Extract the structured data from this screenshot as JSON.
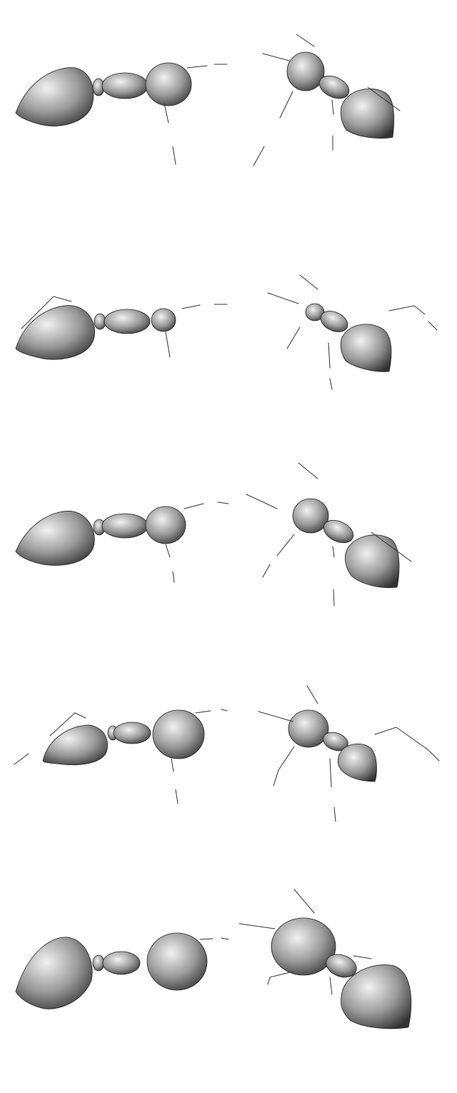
{
  "figure": {
    "rows": 5,
    "specimens_per_row": 2,
    "rendering": "grayscale-shaded-3d-model",
    "subject": "ant-body-models",
    "colors": {
      "background": "#ffffff",
      "body_light": "#f2f2f2",
      "body_dark": "#333333"
    }
  }
}
